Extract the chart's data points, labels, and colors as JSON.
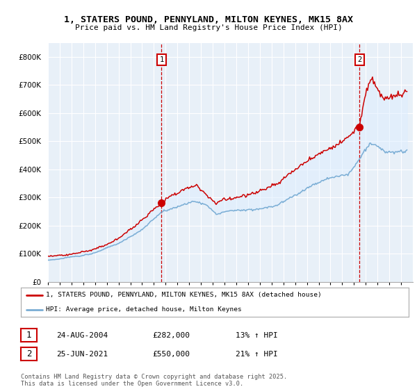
{
  "title": "1, STATERS POUND, PENNYLAND, MILTON KEYNES, MK15 8AX",
  "subtitle": "Price paid vs. HM Land Registry's House Price Index (HPI)",
  "legend_label_red": "1, STATERS POUND, PENNYLAND, MILTON KEYNES, MK15 8AX (detached house)",
  "legend_label_blue": "HPI: Average price, detached house, Milton Keynes",
  "annotation1_date": "24-AUG-2004",
  "annotation1_price": "£282,000",
  "annotation1_hpi": "13% ↑ HPI",
  "annotation1_year": 2004.65,
  "annotation1_value": 282000,
  "annotation2_date": "25-JUN-2021",
  "annotation2_price": "£550,000",
  "annotation2_hpi": "21% ↑ HPI",
  "annotation2_year": 2021.48,
  "annotation2_value": 550000,
  "footer": "Contains HM Land Registry data © Crown copyright and database right 2025.\nThis data is licensed under the Open Government Licence v3.0.",
  "ylim": [
    0,
    850000
  ],
  "xlim_start": 1995,
  "xlim_end": 2026,
  "red_color": "#cc0000",
  "blue_color": "#7aadd4",
  "blue_fill_color": "#ddeeff",
  "vline_color": "#cc0000",
  "background_color": "#e8f0f8",
  "grid_color": "#ffffff"
}
